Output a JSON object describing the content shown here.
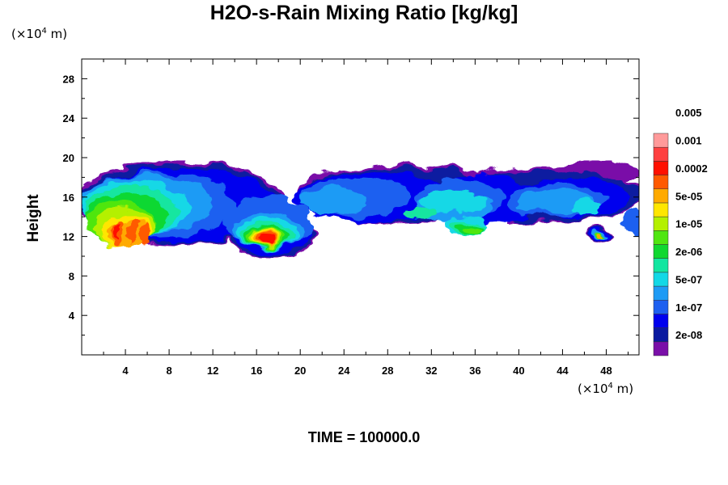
{
  "chart_data": {
    "type": "heatmap",
    "title": "H2O-s-Rain Mixing Ratio [kg/kg]",
    "xlabel": "",
    "ylabel": "Height",
    "x_unit": "(×10",
    "y_unit": "(×10",
    "unit_exponent": "4",
    "unit_suffix": " m)",
    "xlim": [
      0,
      51
    ],
    "ylim": [
      0,
      30
    ],
    "x_ticks": [
      4,
      8,
      12,
      16,
      20,
      24,
      28,
      32,
      36,
      40,
      44,
      48
    ],
    "y_ticks": [
      4,
      8,
      12,
      16,
      20,
      24,
      28
    ],
    "colorbar_levels": [
      "2e-08",
      "1e-07",
      "5e-07",
      "2e-06",
      "1e-05",
      "5e-05",
      "0.0002",
      "0.001",
      "0.005"
    ],
    "colorbar_colors": [
      "#7a0fa8",
      "#0a1aa0",
      "#0000ee",
      "#1e60f0",
      "#1e9bf5",
      "#12d8e6",
      "#12e6a0",
      "#10d830",
      "#50e610",
      "#b4f000",
      "#ffe600",
      "#ffaa00",
      "#ff5a00",
      "#ff1000",
      "#ff4040",
      "#ff9a9a"
    ],
    "clouds": [
      {
        "x0": 0.3,
        "x1": 18.5,
        "y0": 10.3,
        "y1": 19.8
      },
      {
        "x0": 14.0,
        "x1": 21.5,
        "y0": 9.6,
        "y1": 13.8
      },
      {
        "x0": 19.0,
        "x1": 51.0,
        "y0": 11.5,
        "y1": 19.5
      }
    ],
    "time_label": "TIME = 100000.0"
  }
}
